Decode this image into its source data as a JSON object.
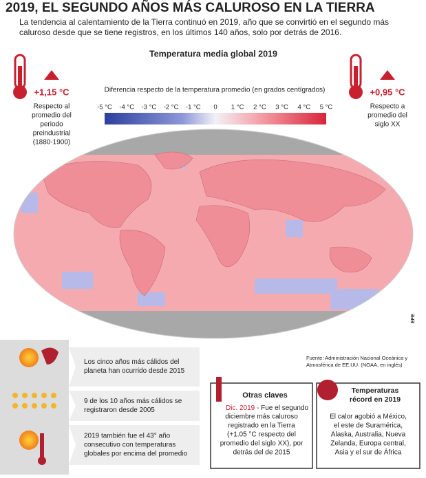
{
  "header": {
    "title": "2019, EL SEGUNDO AÑOS MÁS CALUROSO EN LA TIERRA",
    "subtitle": [
      "La tendencia al calentamiento de la Tierra continuó en 2019, año que se convirtió en el segundo más",
      "caluroso desde que se tiene registros, en los últimos 140 años, solo por detrás de 2016."
    ]
  },
  "map": {
    "title": "Temperatura media global 2019",
    "legend_title": "Diferencia respecto de la temperatura promedio (en grados centígrados)",
    "legend_ticks": [
      "-5 °C",
      "-4 °C",
      "-3 °C",
      "-2 °C",
      "-1 °C",
      "0",
      "1 °C",
      "2 °C",
      "3 °C",
      "4 °C",
      "5 °C"
    ],
    "agency": "EFE"
  },
  "left_stat": {
    "value": "+1,15 °C",
    "note": [
      "Respecto al",
      "promedio del",
      "periodo",
      "preindustrial",
      "(1880-1900)"
    ]
  },
  "right_stat": {
    "value": "+0,95 °C",
    "note": [
      "Respecto a",
      "promedio del",
      "siglo XX"
    ]
  },
  "source": [
    "Fuente: Administración Nacional Oceánica y",
    "Atmosférica de EE.UU. (NOAA, en inglés)"
  ],
  "facts": [
    [
      "Los cinco años más cálidos del",
      "planeta han ocurrido desde 2015"
    ],
    [
      "9 de los 10 años más cálidos se",
      "registraron desde 2005"
    ],
    [
      "2019 también fue el 43° año",
      "consecutivo con temperaturas",
      "globales por encima del promedio"
    ]
  ],
  "otras_claves": {
    "title": "Otras claves",
    "highlight": "Dic. 2019",
    "lines": [
      "- Fue el segundo",
      "diciembre más caluroso",
      "registrado en la Tierra",
      "(+1.05 °C respecto del",
      "promedio del siglo XX), por",
      "detrás del de 2015"
    ]
  },
  "records": {
    "title": [
      "Temperaturas",
      "récord en 2019"
    ],
    "lines": [
      "El calor agobió a México,",
      "el este de Suramérica,",
      "Alaska, Australia, Nueva",
      "Zelanda, Europa central,",
      "Asia y el sur de África"
    ]
  }
}
